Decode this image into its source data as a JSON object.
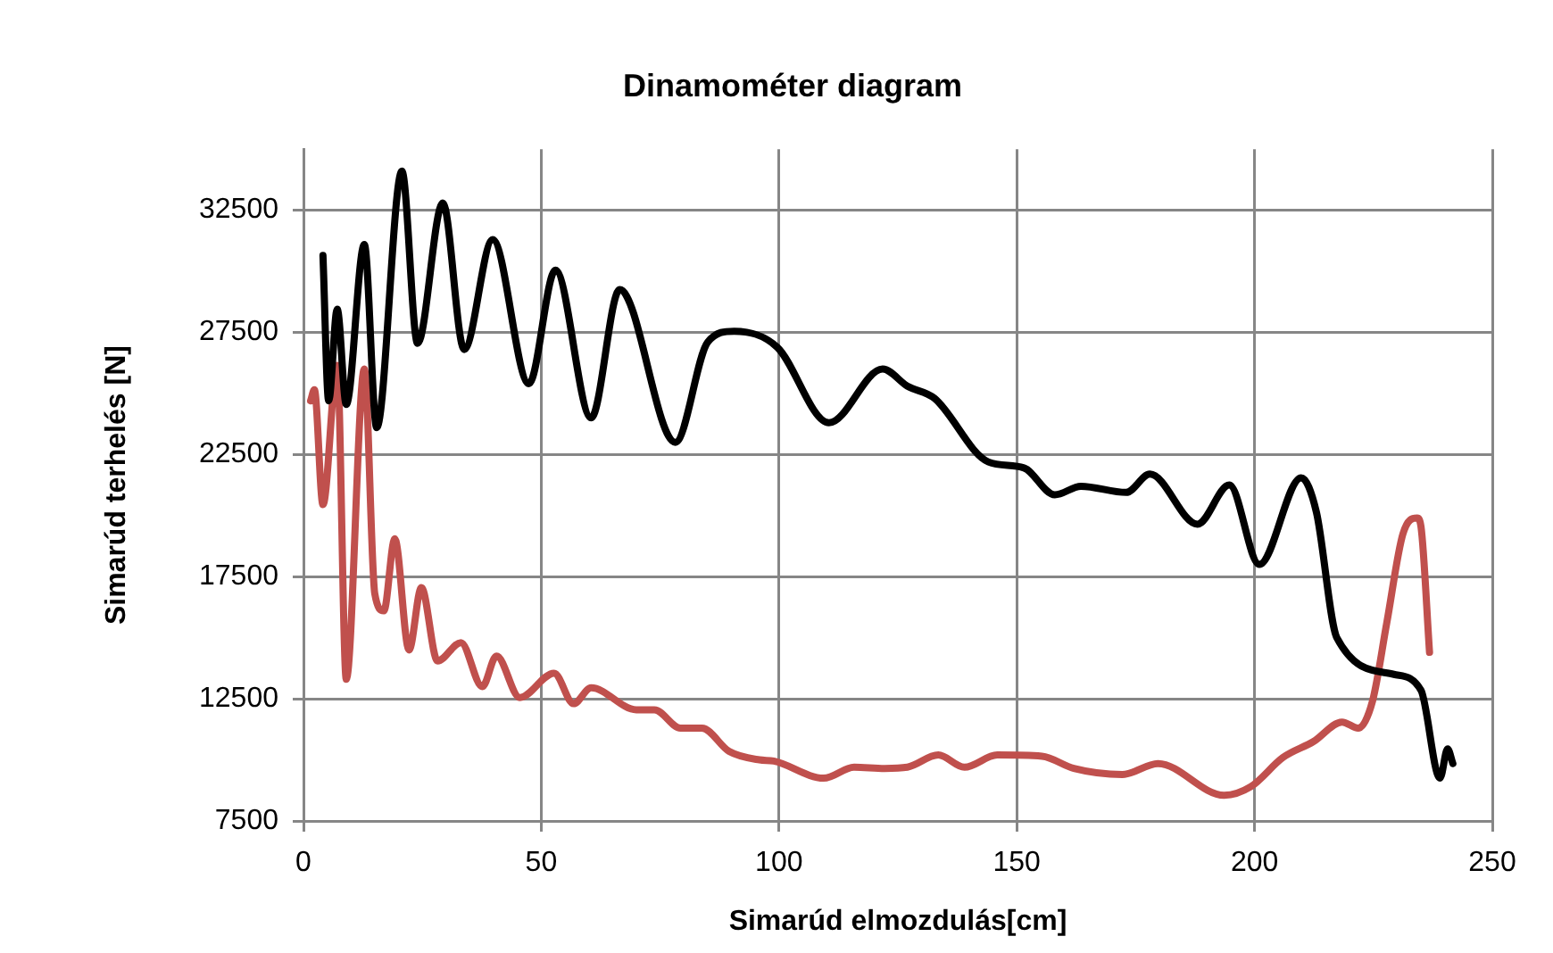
{
  "chart_data": {
    "type": "line",
    "title": "Dinamométer diagram",
    "xlabel": "Simarúd elmozdulás[cm]",
    "ylabel": "Simarúd terhelés [N]",
    "xlim": [
      0,
      250
    ],
    "xticks": [
      0,
      50,
      100,
      150,
      200,
      250
    ],
    "ylim": [
      7500,
      35000
    ],
    "yticks": [
      7500,
      12500,
      17500,
      22500,
      27500,
      32500
    ],
    "grid": true,
    "legend": false,
    "marker": "none",
    "line_style": "solid",
    "series": [
      {
        "color": "#000000",
        "x": [
          4.1,
          5.3,
          7.1,
          9,
          12.8,
          15.4,
          20.7,
          24,
          29.3,
          33.8,
          39.8,
          47.4,
          53,
          60.5,
          66.5,
          78.2,
          85,
          90.6,
          99.6,
          110.5,
          121.8,
          127,
          132.7,
          144,
          151.5,
          158,
          163.5,
          173,
          178,
          188,
          194.7,
          201,
          209.8,
          213,
          217.3,
          229.3,
          235,
          239,
          240.6,
          241.7
        ],
        "values": [
          30650,
          24700,
          28450,
          24550,
          31100,
          23600,
          34100,
          27050,
          32800,
          26800,
          31300,
          25400,
          30050,
          24000,
          29250,
          23000,
          27100,
          27550,
          26900,
          23800,
          26000,
          25300,
          24800,
          22200,
          21950,
          20850,
          21200,
          20950,
          21700,
          19650,
          21250,
          18000,
          21550,
          20150,
          15000,
          13500,
          12850,
          9250,
          10450,
          9850
        ]
      },
      {
        "color": "#c0504d",
        "x": [
          1.5,
          2.3,
          4.1,
          7.1,
          9,
          12.8,
          15,
          16.9,
          19.2,
          22.2,
          24.8,
          28.2,
          33.1,
          37.6,
          40.6,
          45.5,
          52.7,
          56.8,
          60.5,
          70,
          73.8,
          79.3,
          83.8,
          89.5,
          95.9,
          98.9,
          109.4,
          115.8,
          122.2,
          127,
          133.5,
          139,
          145.9,
          155.3,
          162,
          172.2,
          179.7,
          193.6,
          199.2,
          206,
          212.4,
          218.4,
          221.8,
          224.8,
          227.8,
          231.2,
          234.2,
          235,
          236.8
        ],
        "values": [
          24700,
          25150,
          20450,
          26150,
          13300,
          26000,
          16800,
          16100,
          19050,
          14500,
          17050,
          14050,
          14800,
          13000,
          14250,
          12550,
          13550,
          12300,
          12950,
          12050,
          12050,
          11300,
          11300,
          10350,
          10000,
          9950,
          9250,
          9700,
          9650,
          9700,
          10200,
          9700,
          10200,
          10150,
          9650,
          9400,
          9850,
          8550,
          8900,
          10100,
          10750,
          11550,
          11300,
          12400,
          15600,
          19250,
          19900,
          19550,
          14400
        ]
      }
    ]
  }
}
